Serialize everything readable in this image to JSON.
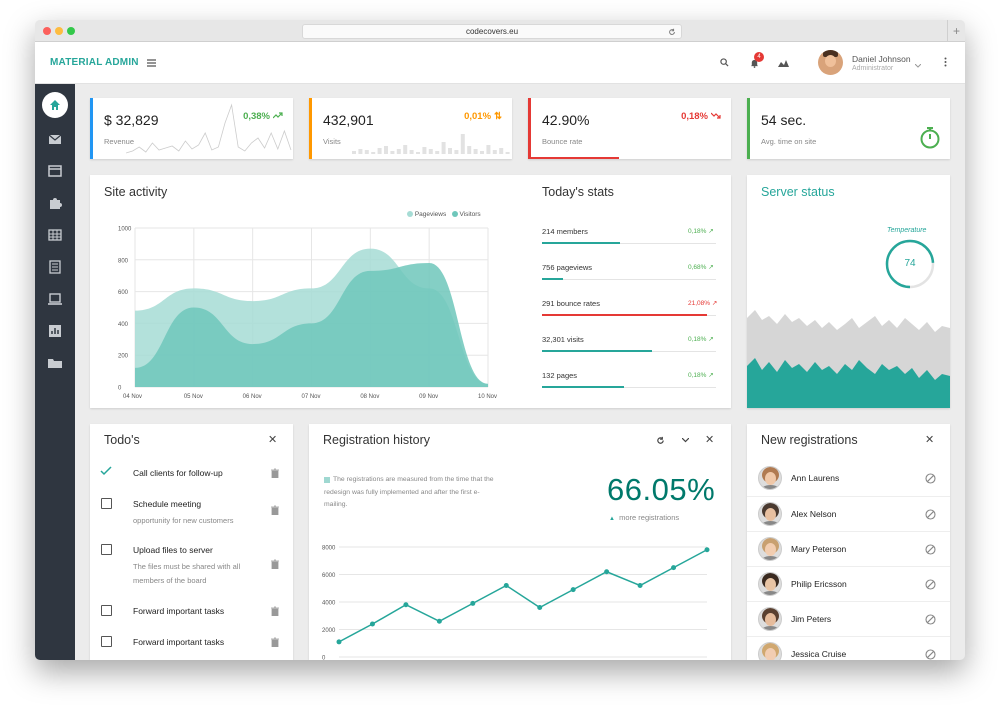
{
  "browser": {
    "url": "codecovers.eu"
  },
  "header": {
    "brand": "MATERIAL ADMIN",
    "notif_count": "4",
    "user_name": "Daniel Johnson",
    "user_role": "Administrator"
  },
  "kpis": [
    {
      "value": "$ 32,829",
      "label": "Revenue",
      "change": "0,38%",
      "color": "#4caf50",
      "border": "#2196f3"
    },
    {
      "value": "432,901",
      "label": "Visits",
      "change": "0,01%",
      "color": "#ff9800",
      "border": "#ff9800"
    },
    {
      "value": "42.90%",
      "label": "Bounce rate",
      "change": "0,18%",
      "color": "#e53935",
      "border": "#e53935"
    },
    {
      "value": "54 sec.",
      "label": "Avg. time on site",
      "change": "",
      "color": "#4caf50",
      "border": "#4caf50"
    }
  ],
  "site_activity": {
    "title": "Site activity",
    "chart_data": {
      "type": "area",
      "categories": [
        "04 Nov",
        "05 Nov",
        "06 Nov",
        "07 Nov",
        "08 Nov",
        "09 Nov",
        "10 Nov"
      ],
      "ylim": [
        0,
        1000
      ],
      "yticks": [
        "1000",
        "800",
        "600",
        "400",
        "200",
        "0"
      ],
      "series": [
        {
          "name": "Pageviews",
          "color": "#a6dcd5",
          "values": [
            480,
            620,
            540,
            620,
            870,
            620,
            20
          ]
        },
        {
          "name": "Visitors",
          "color": "#6fc7bb",
          "values": [
            120,
            500,
            270,
            400,
            730,
            780,
            20
          ]
        }
      ]
    }
  },
  "todays_stats": {
    "title": "Today's stats",
    "items": [
      {
        "label": "214 members",
        "pct": "0,18%",
        "color": "#4caf50",
        "bar": "#26a69a",
        "fill": 0.45
      },
      {
        "label": "756 pageviews",
        "pct": "0,68%",
        "color": "#4caf50",
        "bar": "#26a69a",
        "fill": 0.12
      },
      {
        "label": "291 bounce rates",
        "pct": "21,08%",
        "color": "#e53935",
        "bar": "#e53935",
        "fill": 0.95
      },
      {
        "label": "32,301 visits",
        "pct": "0,18%",
        "color": "#4caf50",
        "bar": "#26a69a",
        "fill": 0.63
      },
      {
        "label": "132 pages",
        "pct": "0,18%",
        "color": "#4caf50",
        "bar": "#26a69a",
        "fill": 0.47
      }
    ]
  },
  "server_status": {
    "title": "Server status",
    "gauge_label": "Temperature",
    "gauge_value": "74",
    "gauge_fill": 0.74
  },
  "todos": {
    "title": "Todo's",
    "items": [
      {
        "title": "Call clients for follow-up",
        "desc": "",
        "done": true
      },
      {
        "title": "Schedule meeting",
        "desc": "opportunity for new customers",
        "done": false
      },
      {
        "title": "Upload files to server",
        "desc": "The files must be shared with all members of the board",
        "done": false
      },
      {
        "title": "Forward important tasks",
        "desc": "",
        "done": false
      },
      {
        "title": "Forward important tasks",
        "desc": "",
        "done": false
      }
    ]
  },
  "registration_history": {
    "title": "Registration history",
    "note": "The registrations are measured from the time that the redesign was fully implemented and after the first e-mailing.",
    "big_value": "66.05%",
    "sub_label": "more registrations",
    "chart_data": {
      "type": "line",
      "ylim": [
        0,
        8000
      ],
      "yticks": [
        "8000",
        "6000",
        "4000",
        "2000",
        "0"
      ],
      "series": [
        {
          "values": [
            1100,
            2400,
            3800,
            2600,
            3900,
            5200,
            3600,
            4900,
            6200,
            5200,
            6500,
            7800
          ]
        }
      ]
    }
  },
  "new_registrations": {
    "title": "New registrations",
    "users": [
      {
        "name": "Ann Laurens",
        "skin": "#f0c8a8",
        "hair": "#b07a50"
      },
      {
        "name": "Alex Nelson",
        "skin": "#e8c0a0",
        "hair": "#4a3a30"
      },
      {
        "name": "Mary Peterson",
        "skin": "#f2cdb0",
        "hair": "#c8a070"
      },
      {
        "name": "Philip Ericsson",
        "skin": "#e8c4a4",
        "hair": "#3a2a20"
      },
      {
        "name": "Jim Peters",
        "skin": "#e6bc9c",
        "hair": "#5a4030"
      },
      {
        "name": "Jessica Cruise",
        "skin": "#f2cdb2",
        "hair": "#d0a870"
      }
    ]
  }
}
